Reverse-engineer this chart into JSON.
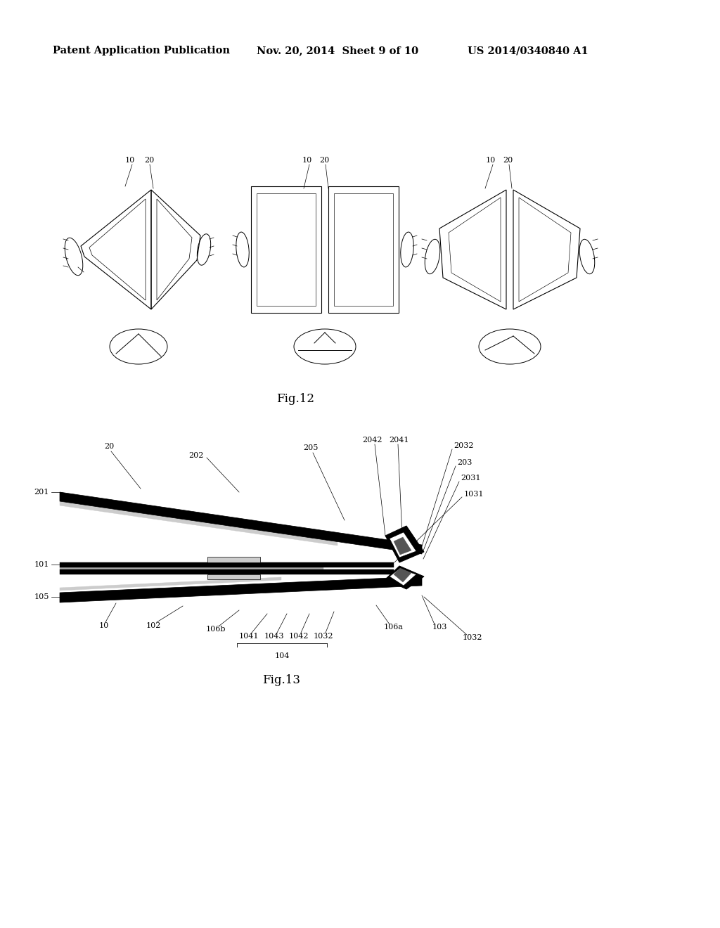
{
  "background_color": "#ffffff",
  "header_left": "Patent Application Publication",
  "header_mid": "Nov. 20, 2014  Sheet 9 of 10",
  "header_right": "US 2014/0340840 A1",
  "fig12_label": "Fig.12",
  "fig13_label": "Fig.13",
  "line_color": "#000000",
  "header_fontsize": 10.5,
  "fig_label_fontsize": 12,
  "ref_fontsize": 8.0
}
